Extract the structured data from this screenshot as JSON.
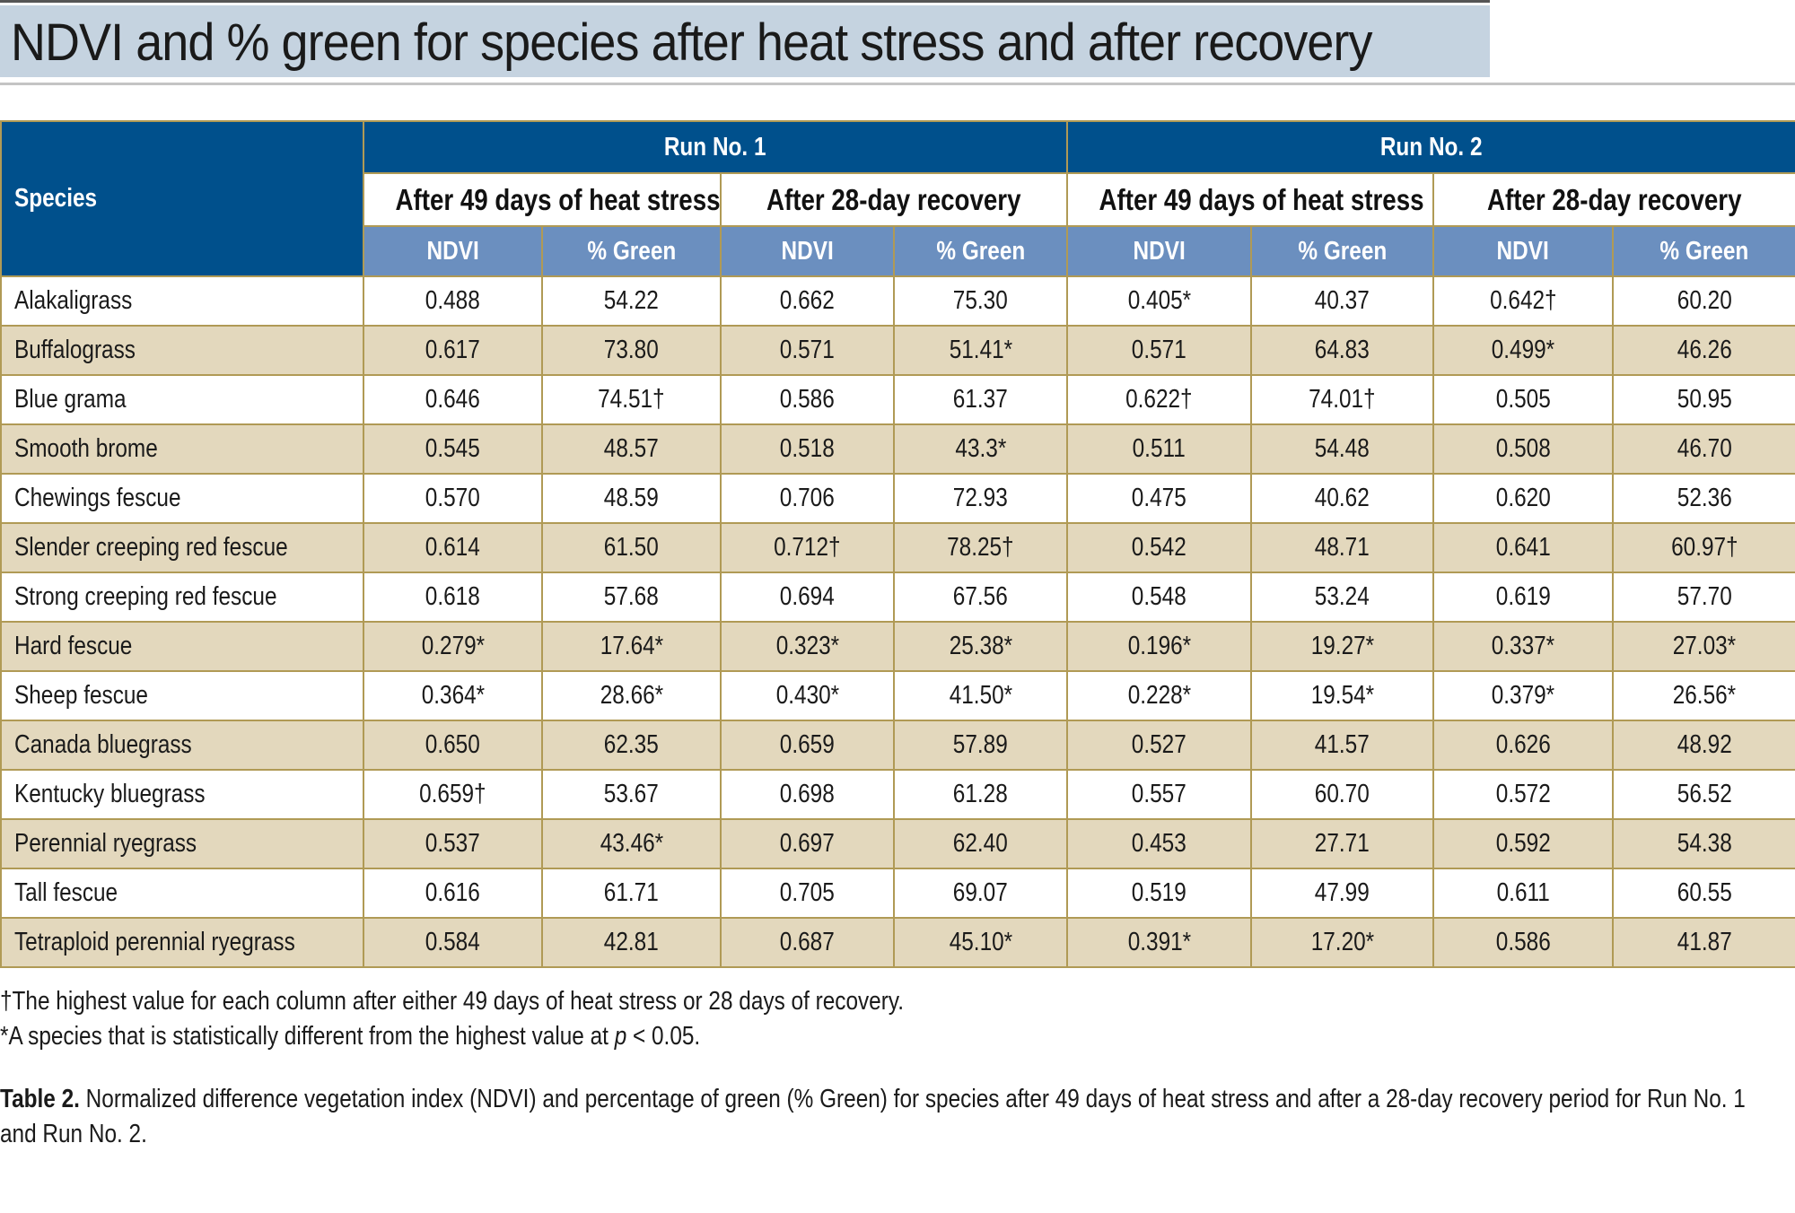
{
  "title": "NDVI and % green for species after heat stress and after recovery",
  "table": {
    "species_header": "Species",
    "runs": [
      "Run No. 1",
      "Run No. 2"
    ],
    "periods": [
      "After 49 days of heat stress",
      "After 28-day recovery",
      "After 49 days of heat stress",
      "After 28-day recovery"
    ],
    "metrics": [
      "NDVI",
      "% Green",
      "NDVI",
      "% Green",
      "NDVI",
      "% Green",
      "NDVI",
      "% Green"
    ],
    "rows": [
      {
        "species": "Alakaligrass",
        "values": [
          "0.488",
          "54.22",
          "0.662",
          "75.30",
          "0.405*",
          "40.37",
          "0.642†",
          "60.20"
        ]
      },
      {
        "species": "Buffalograss",
        "values": [
          "0.617",
          "73.80",
          "0.571",
          "51.41*",
          "0.571",
          "64.83",
          "0.499*",
          "46.26"
        ]
      },
      {
        "species": "Blue grama",
        "values": [
          "0.646",
          "74.51†",
          "0.586",
          "61.37",
          "0.622†",
          "74.01†",
          "0.505",
          "50.95"
        ]
      },
      {
        "species": "Smooth brome",
        "values": [
          "0.545",
          "48.57",
          "0.518",
          "43.3*",
          "0.511",
          "54.48",
          "0.508",
          "46.70"
        ]
      },
      {
        "species": "Chewings fescue",
        "values": [
          "0.570",
          "48.59",
          "0.706",
          "72.93",
          "0.475",
          "40.62",
          "0.620",
          "52.36"
        ]
      },
      {
        "species": "Slender creeping red fescue",
        "values": [
          "0.614",
          "61.50",
          "0.712†",
          "78.25†",
          "0.542",
          "48.71",
          "0.641",
          "60.97†"
        ]
      },
      {
        "species": "Strong creeping red fescue",
        "values": [
          "0.618",
          "57.68",
          "0.694",
          "67.56",
          "0.548",
          "53.24",
          "0.619",
          "57.70"
        ]
      },
      {
        "species": "Hard fescue",
        "values": [
          "0.279*",
          "17.64*",
          "0.323*",
          "25.38*",
          "0.196*",
          "19.27*",
          "0.337*",
          "27.03*"
        ]
      },
      {
        "species": "Sheep fescue",
        "values": [
          "0.364*",
          "28.66*",
          "0.430*",
          "41.50*",
          "0.228*",
          "19.54*",
          "0.379*",
          "26.56*"
        ]
      },
      {
        "species": "Canada bluegrass",
        "values": [
          "0.650",
          "62.35",
          "0.659",
          "57.89",
          "0.527",
          "41.57",
          "0.626",
          "48.92"
        ]
      },
      {
        "species": "Kentucky bluegrass",
        "values": [
          "0.659†",
          "53.67",
          "0.698",
          "61.28",
          "0.557",
          "60.70",
          "0.572",
          "56.52"
        ]
      },
      {
        "species": "Perennial ryegrass",
        "values": [
          "0.537",
          "43.46*",
          "0.697",
          "62.40",
          "0.453",
          "27.71",
          "0.592",
          "54.38"
        ]
      },
      {
        "species": "Tall fescue",
        "values": [
          "0.616",
          "61.71",
          "0.705",
          "69.07",
          "0.519",
          "47.99",
          "0.611",
          "60.55"
        ]
      },
      {
        "species": "Tetraploid perennial ryegrass",
        "values": [
          "0.584",
          "42.81",
          "0.687",
          "45.10*",
          "0.391*",
          "17.20*",
          "0.586",
          "41.87"
        ]
      }
    ]
  },
  "footnotes": {
    "dagger": "†The highest value for each column after either 49 days of heat stress or 28 days of recovery.",
    "asterisk_prefix": "*A species that is statistically different from the highest value at ",
    "asterisk_p": "p",
    "asterisk_suffix": " < 0.05."
  },
  "caption": {
    "label": "Table 2.",
    "text": " Normalized difference vegetation index (NDVI) and percentage of green (% Green) for species after 49 days of heat stress and after a 28-day recovery period for Run No. 1 and Run No. 2."
  },
  "colors": {
    "header_dark": "#00508c",
    "header_light": "#6b8fbf",
    "row_alt": "#e3d8bd",
    "border": "#b09a55",
    "title_band": "#c5d3e0"
  }
}
